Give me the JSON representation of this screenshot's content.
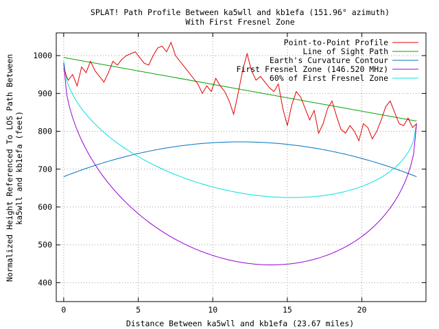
{
  "chart_data": {
    "type": "line",
    "title": "SPLAT! Path Profile Between ka5wll and kb1efa (151.96° azimuth)",
    "subtitle": "With First Fresnel Zone",
    "xlabel": "Distance Between ka5wll and kb1efa (23.67 miles)",
    "ylabel_line1": "Normalized Height Referenced To LOS Path Between",
    "ylabel_line2": "ka5wll and kb1efa (feet)",
    "xlim": [
      -0.5,
      24.3
    ],
    "ylim": [
      350,
      1060
    ],
    "x_ticks": [
      0,
      5,
      10,
      15,
      20
    ],
    "y_ticks": [
      400,
      500,
      600,
      700,
      800,
      900,
      1000
    ],
    "grid": true,
    "legend_position": "top-right",
    "total_distance": 23.67,
    "series": [
      {
        "name": "Point-to-Point Profile",
        "color": "#e00000",
        "x": [
          0,
          0.3,
          0.6,
          0.9,
          1.2,
          1.5,
          1.8,
          2.1,
          2.4,
          2.7,
          3.0,
          3.3,
          3.6,
          3.9,
          4.2,
          4.5,
          4.8,
          5.1,
          5.4,
          5.7,
          6.0,
          6.3,
          6.6,
          6.9,
          7.2,
          7.5,
          7.8,
          8.1,
          8.4,
          8.7,
          9.0,
          9.3,
          9.6,
          9.9,
          10.2,
          10.5,
          10.8,
          11.1,
          11.4,
          11.7,
          12.0,
          12.3,
          12.6,
          12.9,
          13.2,
          13.5,
          13.8,
          14.1,
          14.4,
          14.7,
          15.0,
          15.3,
          15.6,
          15.9,
          16.2,
          16.5,
          16.8,
          17.1,
          17.4,
          17.7,
          18.0,
          18.3,
          18.6,
          18.9,
          19.2,
          19.5,
          19.8,
          20.1,
          20.4,
          20.7,
          21.0,
          21.3,
          21.6,
          21.9,
          22.2,
          22.5,
          22.8,
          23.1,
          23.4,
          23.67
        ],
        "values": [
          965,
          935,
          950,
          920,
          970,
          955,
          985,
          960,
          945,
          930,
          955,
          985,
          975,
          990,
          1000,
          1005,
          1010,
          995,
          980,
          975,
          1000,
          1020,
          1025,
          1010,
          1035,
          1000,
          985,
          970,
          955,
          940,
          925,
          900,
          920,
          905,
          940,
          920,
          905,
          880,
          845,
          900,
          960,
          1005,
          960,
          935,
          945,
          930,
          915,
          905,
          925,
          860,
          815,
          870,
          905,
          890,
          860,
          830,
          855,
          795,
          820,
          860,
          880,
          840,
          805,
          795,
          815,
          800,
          775,
          820,
          810,
          780,
          800,
          830,
          865,
          880,
          850,
          820,
          815,
          835,
          810,
          820
        ]
      },
      {
        "name": "Line of Sight Path",
        "color": "#00a000",
        "x": [
          0,
          23.67
        ],
        "values": [
          995,
          827
        ]
      },
      {
        "name": "Earth's Curvature Contour",
        "color": "#0070c0",
        "curve": "parabola",
        "endpoint_value": 680,
        "peak_value": 772
      },
      {
        "name": "First Fresnel Zone (146.520 MHz)",
        "color": "#9400d3",
        "curve": "fresnel",
        "start_value": 980,
        "end_value": 820,
        "min_value": 447,
        "min_at_x": 14.0
      },
      {
        "name": "60% of First Fresnel Zone",
        "color": "#00e0e0",
        "curve": "fresnel",
        "start_value": 985,
        "end_value": 822,
        "min_value": 625,
        "min_at_x": 15.0
      }
    ]
  }
}
